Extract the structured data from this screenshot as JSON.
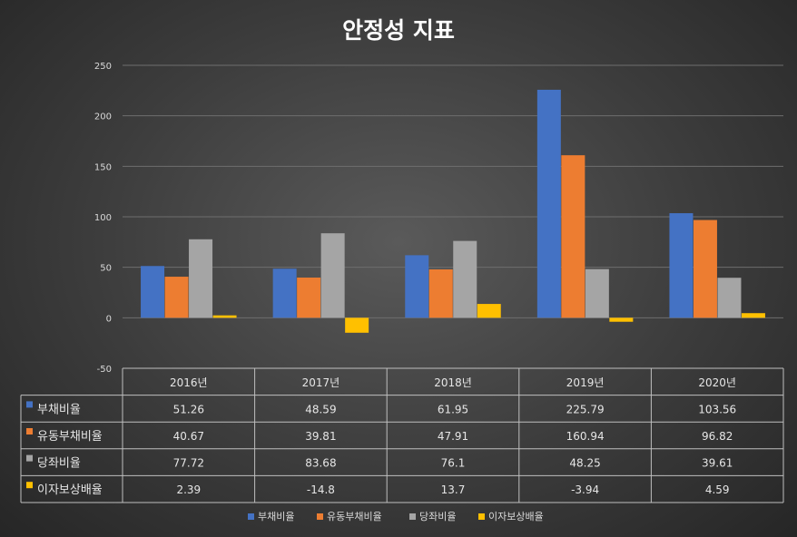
{
  "chart_data": {
    "type": "bar",
    "title": "안정성 지표",
    "categories": [
      "2016년",
      "2017년",
      "2018년",
      "2019년",
      "2020년"
    ],
    "series": [
      {
        "name": "부채비율",
        "color": "#4472c4",
        "values": [
          51.26,
          48.59,
          61.95,
          225.79,
          103.56
        ],
        "labels": [
          "51.26",
          "48.59",
          "61.95",
          "225.79",
          "103.56"
        ]
      },
      {
        "name": "유동부채비율",
        "color": "#ed7d31",
        "values": [
          40.67,
          39.81,
          47.91,
          160.94,
          96.82
        ],
        "labels": [
          "40.67",
          "39.81",
          "47.91",
          "160.94",
          "96.82"
        ]
      },
      {
        "name": "당좌비율",
        "color": "#a5a5a5",
        "values": [
          77.72,
          83.68,
          76.1,
          48.25,
          39.61
        ],
        "labels": [
          "77.72",
          "83.68",
          "76.1",
          "48.25",
          "39.61"
        ]
      },
      {
        "name": "이자보상배율",
        "color": "#ffc000",
        "values": [
          2.39,
          -14.8,
          13.7,
          -3.94,
          4.59
        ],
        "labels": [
          "2.39",
          "-14.8",
          "13.7",
          "-3.94",
          "4.59"
        ]
      }
    ],
    "ylim": [
      -50,
      250
    ],
    "yticks": [
      250,
      200,
      150,
      100,
      50,
      0,
      -50
    ],
    "grid": true,
    "data_table": true,
    "legend_position": "bottom"
  }
}
